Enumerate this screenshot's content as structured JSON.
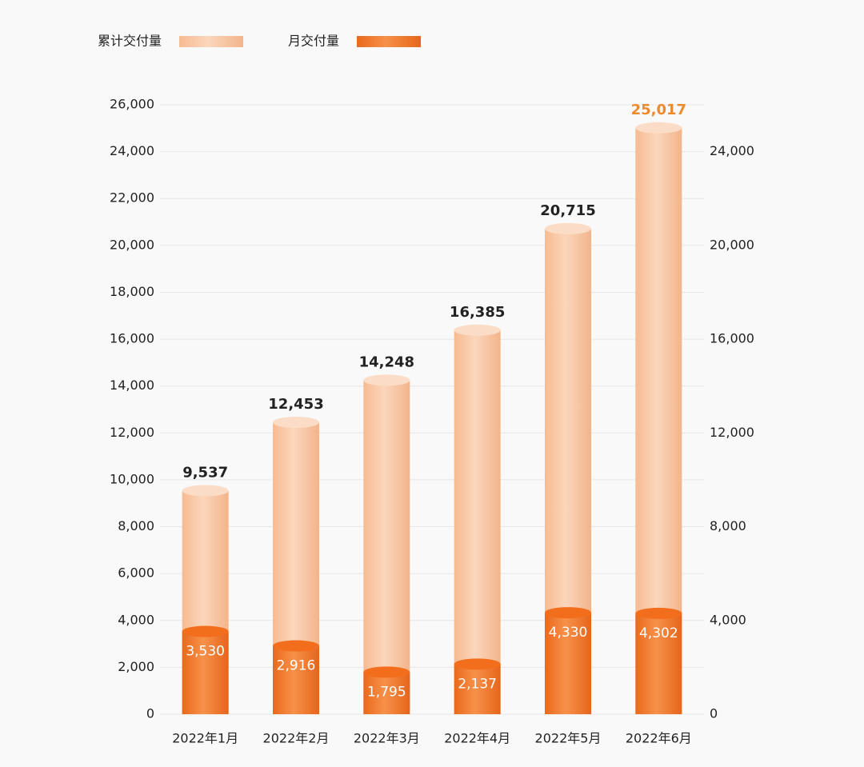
{
  "chart_data": {
    "type": "bar",
    "categories": [
      "2022年1月",
      "2022年2月",
      "2022年3月",
      "2022年4月",
      "2022年5月",
      "2022年6月"
    ],
    "series": [
      {
        "name": "累计交付量",
        "color": "#f9c9a4",
        "values": [
          9537,
          12453,
          14248,
          16385,
          20715,
          25017
        ],
        "value_labels": [
          "9,537",
          "12,453",
          "14,248",
          "16,385",
          "20,715",
          "25,017"
        ]
      },
      {
        "name": "月交付量",
        "color": "#f07a2a",
        "axis": "y2",
        "values": [
          3530,
          2916,
          1795,
          2137,
          4330,
          4302
        ],
        "value_labels": [
          "3,530",
          "2,916",
          "1,795",
          "2,137",
          "4,330",
          "4,302"
        ]
      }
    ],
    "ylim": [
      0,
      26000
    ],
    "yticks": [
      0,
      {
        "value": 2000,
        "label": "2,000"
      },
      {
        "value": 4000,
        "label": "4,000"
      },
      {
        "value": 6000,
        "label": "6,000"
      },
      {
        "value": 8000,
        "label": "8,000"
      },
      {
        "value": 10000,
        "label": "10,000"
      },
      {
        "value": 12000,
        "label": "12,000"
      },
      {
        "value": 14000,
        "label": "14,000"
      },
      {
        "value": 16000,
        "label": "16,000"
      },
      {
        "value": 18000,
        "label": "18,000"
      },
      {
        "value": 20000,
        "label": "20,000"
      },
      {
        "value": 22000,
        "label": "22,000"
      },
      {
        "value": 24000,
        "label": "24,000"
      },
      {
        "value": 26000,
        "label": "26,000"
      }
    ],
    "y2lim": [
      0,
      26000
    ],
    "y2ticks": [
      0,
      {
        "value": 4000,
        "label": "4,000"
      },
      {
        "value": 8000,
        "label": "8,000"
      },
      {
        "value": 12000,
        "label": "12,000"
      },
      {
        "value": 16000,
        "label": "16,000"
      },
      {
        "value": 20000,
        "label": "20,000"
      },
      {
        "value": 24000,
        "label": "24,000"
      }
    ],
    "grid": true,
    "legend": "top-left",
    "last_label_color": "#ee8a2e"
  }
}
